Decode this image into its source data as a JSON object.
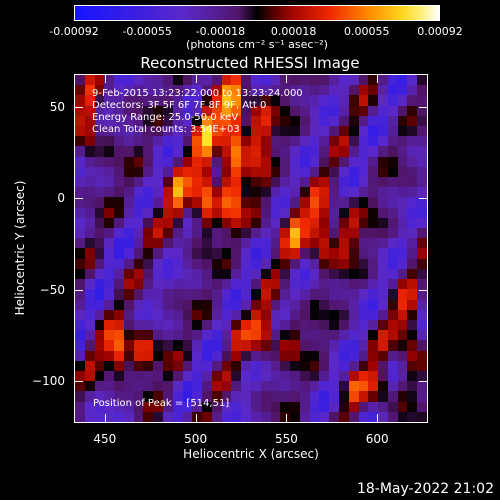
{
  "colorbar": {
    "tick_labels": [
      "-0.00092",
      "-0.00055",
      "-0.00018",
      "0.00018",
      "0.00055",
      "0.00092"
    ],
    "unit": "(photons cm⁻² s⁻¹ asec⁻²)"
  },
  "info": {
    "line1": "9-Feb-2015 13:23:22.000 to 13:23:24.000",
    "line2": "Detectors: 3F 5F 6F 7F 8F 9F, Att 0",
    "line3": "Energy Range: 25.0-50.0 keV",
    "line4": "Clean     Total counts: 3.54E+03",
    "peak": "Position of Peak = [514,51]"
  },
  "footer": "18-May-2022 21:02",
  "chart_data": {
    "type": "heatmap",
    "title": "Reconstructed RHESSI Image",
    "xlabel": "Heliocentric X (arcsec)",
    "ylabel": "Heliocentric Y (arcsec)",
    "xlim": [
      433,
      628
    ],
    "ylim": [
      -123,
      68
    ],
    "x_ticks": [
      450,
      500,
      550,
      600
    ],
    "y_ticks": [
      -100,
      -50,
      0,
      50
    ],
    "colorbar_range": [
      -0.00092,
      0.00092
    ],
    "grid_cols": 36,
    "grid_rows": 34,
    "peak_position": [
      514,
      51
    ]
  }
}
